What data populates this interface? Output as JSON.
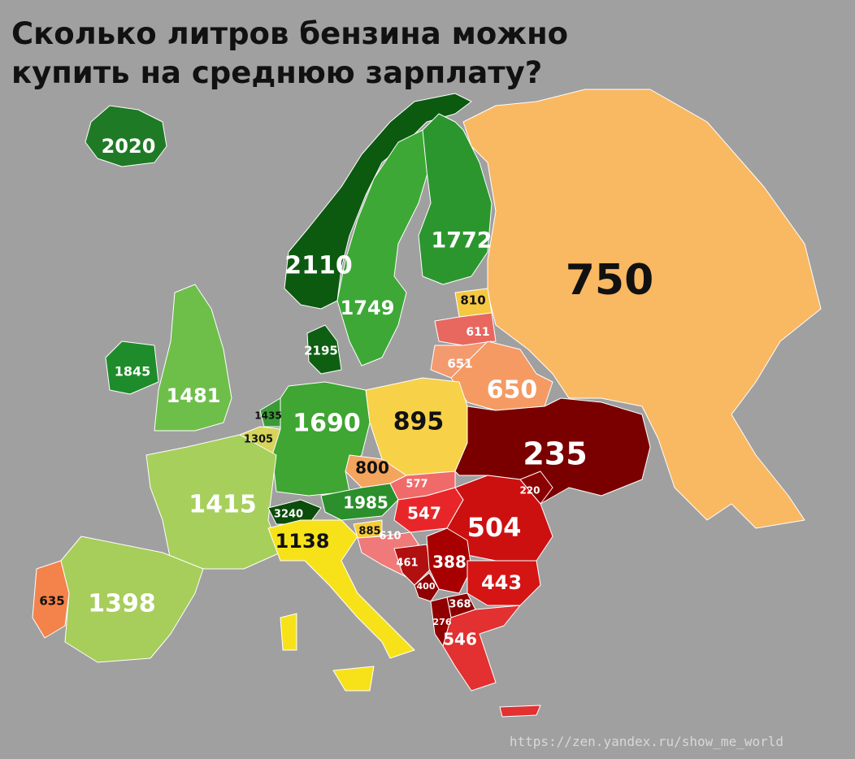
{
  "title": "Сколько литров бензина можно купить на среднюю зарплату?",
  "source": "https://zen.yandex.ru/show_me_world",
  "regions": [
    {
      "value": 2020,
      "color": "#1f7a25"
    },
    {
      "value": 2110,
      "color": "#0c5a10"
    },
    {
      "value": 1749,
      "color": "#3da836"
    },
    {
      "value": 1772,
      "color": "#2c962e"
    },
    {
      "value": 750,
      "color": "#f9b862"
    },
    {
      "value": 810,
      "color": "#f5c842"
    },
    {
      "value": 611,
      "color": "#e8675f"
    },
    {
      "value": 651,
      "color": "#f39a6e"
    },
    {
      "value": 650,
      "color": "#f59a63"
    },
    {
      "value": 1845,
      "color": "#1e8c2a"
    },
    {
      "value": 1481,
      "color": "#6dbf4a"
    },
    {
      "value": 2195,
      "color": "#0f5f12"
    },
    {
      "value": 1435,
      "color": "#3a9a35"
    },
    {
      "value": 1305,
      "color": "#d6d45a"
    },
    {
      "value": 1690,
      "color": "#3fa533"
    },
    {
      "value": 895,
      "color": "#f7d148"
    },
    {
      "value": 235,
      "color": "#7a0000"
    },
    {
      "value": 800,
      "color": "#f3a55e"
    },
    {
      "value": 1415,
      "color": "#a6cf5c"
    },
    {
      "value": 1985,
      "color": "#2b8f2b"
    },
    {
      "value": 3240,
      "color": "#0b4d0b"
    },
    {
      "value": 577,
      "color": "#f06a6a"
    },
    {
      "value": 547,
      "color": "#e8262a"
    },
    {
      "value": 504,
      "color": "#cc1010"
    },
    {
      "value": 220,
      "color": "#8b0000"
    },
    {
      "value": 1138,
      "color": "#f7e21a"
    },
    {
      "value": 885,
      "color": "#f5cc3c"
    },
    {
      "value": 610,
      "color": "#f0797a"
    },
    {
      "value": 461,
      "color": "#b01010"
    },
    {
      "value": 388,
      "color": "#a80000"
    },
    {
      "value": 400,
      "color": "#8f0000"
    },
    {
      "value": 443,
      "color": "#d51414"
    },
    {
      "value": 368,
      "color": "#8b0000"
    },
    {
      "value": 276,
      "color": "#900000"
    },
    {
      "value": 546,
      "color": "#e33030"
    },
    {
      "value": 635,
      "color": "#f3834a"
    },
    {
      "value": 1398,
      "color": "#a7cd5b"
    }
  ]
}
